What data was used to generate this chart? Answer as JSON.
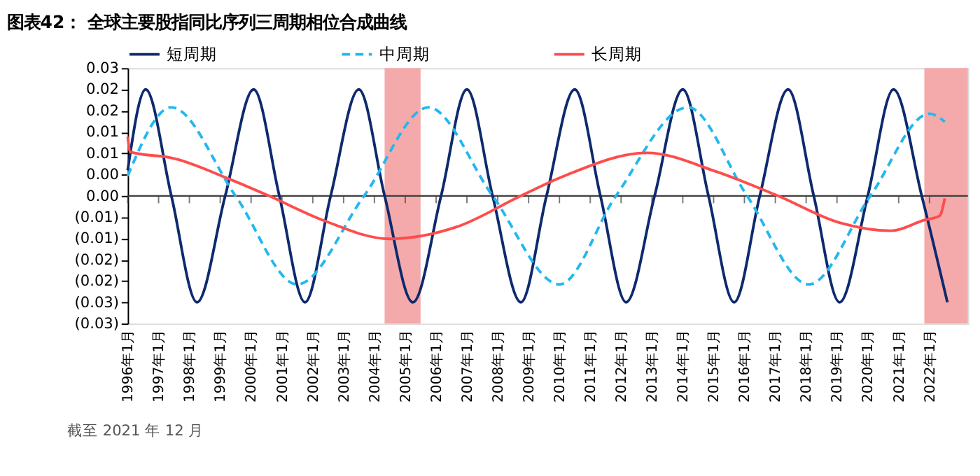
{
  "chart_data": {
    "type": "line",
    "title": "图表42：  全球主要股指同比序列三周期相位合成曲线",
    "annotations": [
      "截至 2021 年 12 月"
    ],
    "series": [
      {
        "name": "短周期",
        "color": "#0e2a6e",
        "line_style": "solid",
        "x": [
          "1996-01",
          "1996-08",
          "1997-06",
          "1998-04",
          "1999-03",
          "2000-02",
          "2000-12",
          "2001-10",
          "2002-08",
          "2003-07",
          "2004-05",
          "2005-04",
          "2006-03",
          "2007-01",
          "2007-11",
          "2008-10",
          "2009-08",
          "2010-07",
          "2011-05",
          "2012-03",
          "2013-02",
          "2014-01",
          "2014-11",
          "2015-09",
          "2016-07",
          "2017-06",
          "2018-04",
          "2019-02",
          "2020-01",
          "2020-11",
          "2021-10",
          "2022-08"
        ],
        "values": [
          0.006,
          0.025,
          0,
          -0.025,
          0,
          0.025,
          0,
          -0.025,
          0,
          0.025,
          0,
          -0.025,
          0,
          0.025,
          0,
          -0.025,
          0,
          0.025,
          0,
          -0.025,
          0,
          0.025,
          0,
          -0.025,
          0,
          0.025,
          0,
          -0.025,
          0,
          0.025,
          0,
          -0.025
        ]
      },
      {
        "name": "中周期",
        "color": "#21b8ef",
        "line_style": "dashed",
        "x": [
          "1996-01",
          "1997-06",
          "1999-07",
          "2001-07",
          "2003-09",
          "2005-10",
          "2007-11",
          "2010-01",
          "2011-11",
          "2014-03",
          "2016-02",
          "2018-02",
          "2020-02",
          "2022-01",
          "2022-07"
        ],
        "values": [
          0.0047,
          0.0208,
          0,
          -0.0208,
          0,
          0.0208,
          0,
          -0.0208,
          0,
          0.0208,
          0,
          -0.0208,
          0,
          0.0193,
          0.0174
        ]
      },
      {
        "name": "长周期",
        "color": "#ff4c4c",
        "line_style": "solid",
        "x": [
          "1996-01",
          "1996-02",
          "1997-07",
          "1999-04",
          "2000-08",
          "2002-05",
          "2004-07",
          "2006-09",
          "2008-10",
          "2010-03",
          "2012-11",
          "2015-02",
          "2017-02",
          "2019-02",
          "2020-10",
          "2021-11",
          "2022-05",
          "2022-07"
        ],
        "values": [
          0.0139,
          0.0103,
          0.0088,
          0.0041,
          0,
          -0.0057,
          -0.0101,
          -0.0073,
          0,
          0.0047,
          0.0101,
          0.0057,
          0,
          -0.0063,
          -0.0082,
          -0.0057,
          -0.0047,
          -0.0006
        ]
      }
    ],
    "bands": [
      {
        "axis": "x",
        "from": "2004-05",
        "to": "2005-07",
        "color": "#f4aaaa"
      },
      {
        "axis": "x",
        "from": "2021-11",
        "to": "2023-04",
        "color": "#f4aaaa"
      }
    ],
    "ref_lines": [
      {
        "axis": "y",
        "value": 0,
        "color": "#404040"
      }
    ],
    "xlim": [
      "1996-01",
      "2023-04"
    ],
    "xticks": [
      {
        "value": "1996-01",
        "label": "1996年1月"
      },
      {
        "value": "1997-01",
        "label": "1997年1月"
      },
      {
        "value": "1998-01",
        "label": "1998年1月"
      },
      {
        "value": "1999-01",
        "label": "1999年1月"
      },
      {
        "value": "2000-01",
        "label": "2000年1月"
      },
      {
        "value": "2001-01",
        "label": "2001年1月"
      },
      {
        "value": "2002-01",
        "label": "2002年1月"
      },
      {
        "value": "2003-01",
        "label": "2003年1月"
      },
      {
        "value": "2004-01",
        "label": "2004年1月"
      },
      {
        "value": "2005-01",
        "label": "2005年1月"
      },
      {
        "value": "2006-01",
        "label": "2006年1月"
      },
      {
        "value": "2007-01",
        "label": "2007年1月"
      },
      {
        "value": "2008-01",
        "label": "2008年1月"
      },
      {
        "value": "2009-01",
        "label": "2009年1月"
      },
      {
        "value": "2010-01",
        "label": "2010年1月"
      },
      {
        "value": "2011-01",
        "label": "2011年1月"
      },
      {
        "value": "2012-01",
        "label": "2012年1月"
      },
      {
        "value": "2013-01",
        "label": "2013年1月"
      },
      {
        "value": "2014-01",
        "label": "2014年1月"
      },
      {
        "value": "2015-01",
        "label": "2015年1月"
      },
      {
        "value": "2016-01",
        "label": "2016年1月"
      },
      {
        "value": "2017-01",
        "label": "2017年1月"
      },
      {
        "value": "2018-01",
        "label": "2018年1月"
      },
      {
        "value": "2019-01",
        "label": "2019年1月"
      },
      {
        "value": "2020-01",
        "label": "2020年1月"
      },
      {
        "value": "2021-01",
        "label": "2021年1月"
      },
      {
        "value": "2022-01",
        "label": "2022年1月"
      }
    ],
    "ylim": [
      -0.03,
      0.03
    ],
    "yticks": [
      {
        "value": 0.03,
        "label": "0.03"
      },
      {
        "value": 0.025,
        "label": "0.02"
      },
      {
        "value": 0.02,
        "label": "0.02"
      },
      {
        "value": 0.015,
        "label": "0.01"
      },
      {
        "value": 0.01,
        "label": "0.01"
      },
      {
        "value": 0.005,
        "label": "0.00"
      },
      {
        "value": 0,
        "label": "0.00"
      },
      {
        "value": -0.005,
        "label": "(0.01)"
      },
      {
        "value": -0.01,
        "label": "(0.01)"
      },
      {
        "value": -0.015,
        "label": "(0.02)"
      },
      {
        "value": -0.02,
        "label": "(0.02)"
      },
      {
        "value": -0.025,
        "label": "(0.03)"
      },
      {
        "value": -0.03,
        "label": "(0.03)"
      }
    ],
    "grid": false,
    "legend": "top",
    "marker": "none"
  }
}
